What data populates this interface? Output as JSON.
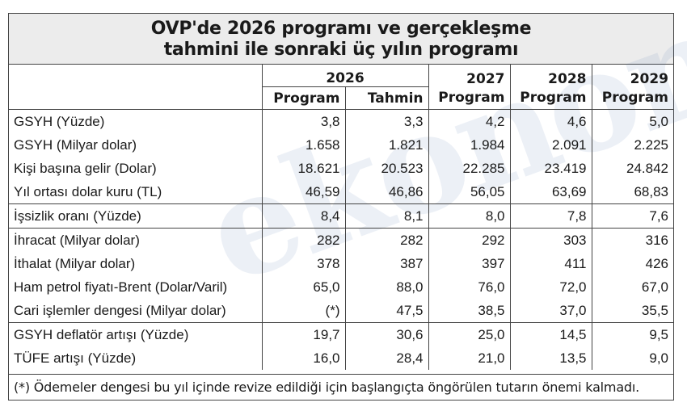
{
  "title": {
    "line1": "OVP'de 2026 programı ve gerçekleşme",
    "line2": "tahmini ile sonraki üç yılın programı"
  },
  "watermark": "ekonomi",
  "header": {
    "y2026": "2026",
    "y2027": "2027",
    "y2028": "2028",
    "y2029": "2029",
    "program": "Program",
    "tahmin": "Tahmin"
  },
  "rows": [
    {
      "label": "GSYH (Yüzde)",
      "v": [
        "3,8",
        "3,3",
        "4,2",
        "4,6",
        "5,0"
      ]
    },
    {
      "label": "GSYH (Milyar dolar)",
      "v": [
        "1.658",
        "1.821",
        "1.984",
        "2.091",
        "2.225"
      ]
    },
    {
      "label": "Kişi başına gelir (Dolar)",
      "v": [
        "18.621",
        "20.523",
        "22.285",
        "23.419",
        "24.842"
      ]
    },
    {
      "label": "Yıl ortası dolar kuru (TL)",
      "v": [
        "46,59",
        "46,86",
        "56,05",
        "63,69",
        "68,83"
      ]
    },
    {
      "label": "İşsizlik oranı (Yüzde)",
      "v": [
        "8,4",
        "8,1",
        "8,0",
        "7,8",
        "7,6"
      ]
    },
    {
      "label": "İhracat (Milyar dolar)",
      "v": [
        "282",
        "282",
        "292",
        "303",
        "316"
      ]
    },
    {
      "label": "İthalat (Milyar dolar)",
      "v": [
        "378",
        "387",
        "397",
        "411",
        "426"
      ]
    },
    {
      "label": "Ham petrol fiyatı-Brent (Dolar/Varil)",
      "v": [
        "65,0",
        "88,0",
        "76,0",
        "72,0",
        "67,0"
      ]
    },
    {
      "label": "Cari işlemler dengesi (Milyar dolar)",
      "v": [
        "(*)",
        "47,5",
        "38,5",
        "37,0",
        "35,5"
      ]
    },
    {
      "label": "GSYH deflatör artışı (Yüzde)",
      "v": [
        "19,7",
        "30,6",
        "25,0",
        "14,5",
        "9,5"
      ]
    },
    {
      "label": "TÜFE artışı (Yüzde)",
      "v": [
        "16,0",
        "28,4",
        "21,0",
        "13,5",
        "9,0"
      ]
    }
  ],
  "footnote": "(*) Ödemeler dengesi bu yıl içinde revize edildiği için başlangıçta öngörülen tutarın önemi kalmadı."
}
